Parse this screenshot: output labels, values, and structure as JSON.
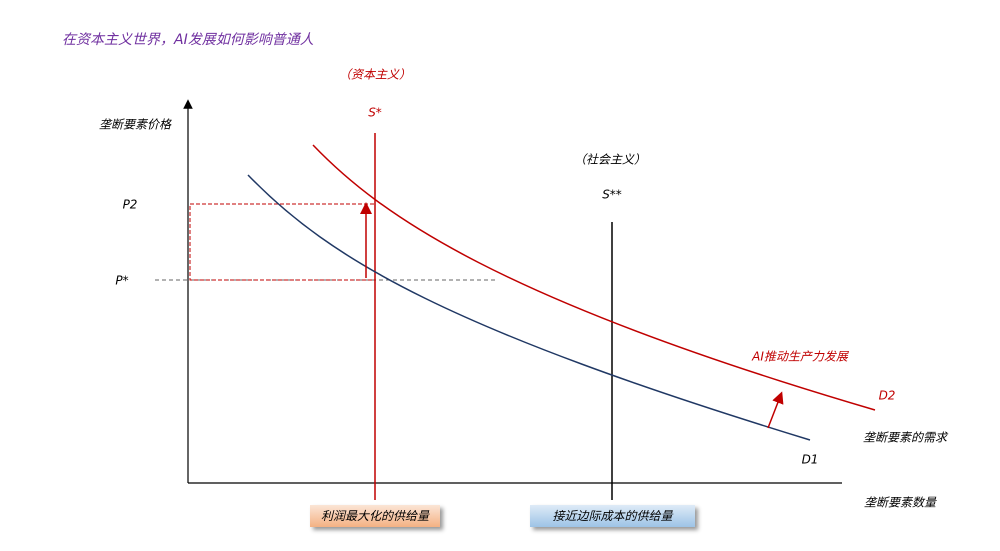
{
  "title": "在资本主义世界，AI发展如何影响普通人",
  "axes": {
    "y_label": "垄断要素价格",
    "x_label": "垄断要素数量"
  },
  "supply": [
    {
      "note": "（资本主义）",
      "label": "S*"
    },
    {
      "note": "（社会主义）",
      "label": "S**"
    }
  ],
  "prices": [
    "P2",
    "P*"
  ],
  "curves": {
    "shift_label": "AI推动生产力发展",
    "d2": "D2",
    "demand_label": "垄断要素的需求",
    "d1": "D1"
  },
  "boxes": [
    "利润最大化的供给量",
    "接近边际成本的供给量"
  ]
}
